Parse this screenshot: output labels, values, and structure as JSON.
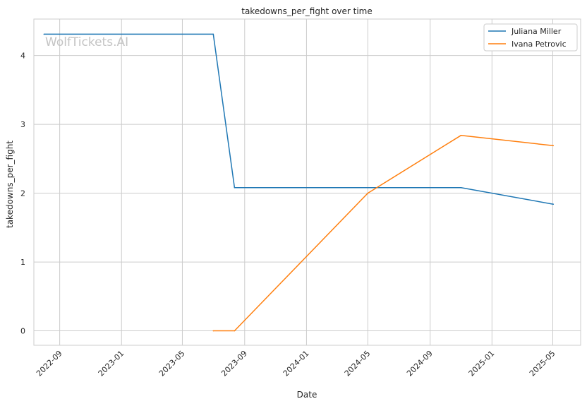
{
  "chart_data": {
    "type": "line",
    "title": "takedowns_per_fight over time",
    "xlabel": "Date",
    "ylabel": "takedowns_per_fight",
    "x_ticks": [
      "2022-09",
      "2023-01",
      "2023-05",
      "2023-09",
      "2024-01",
      "2024-05",
      "2024-09",
      "2025-01",
      "2025-05"
    ],
    "y_ticks": [
      0,
      1,
      2,
      3,
      4
    ],
    "xlim": [
      "2022-07-12",
      "2025-06-25"
    ],
    "ylim": [
      -0.21,
      4.53
    ],
    "grid": true,
    "legend_position": "top-right",
    "watermark": "WolfTickets.AI",
    "series": [
      {
        "name": "Juliana Miller",
        "color": "#1f77b4",
        "points": [
          {
            "x": "2022-08-01",
            "y": 4.31
          },
          {
            "x": "2023-07-01",
            "y": 4.31
          },
          {
            "x": "2023-08-12",
            "y": 2.08
          },
          {
            "x": "2024-11-01",
            "y": 2.08
          },
          {
            "x": "2025-05-02",
            "y": 1.84
          }
        ]
      },
      {
        "name": "Ivana Petrovic",
        "color": "#ff7f0e",
        "points": [
          {
            "x": "2023-07-01",
            "y": 0.0
          },
          {
            "x": "2023-08-12",
            "y": 0.0
          },
          {
            "x": "2024-05-01",
            "y": 2.0
          },
          {
            "x": "2024-11-01",
            "y": 2.84
          },
          {
            "x": "2025-05-02",
            "y": 2.69
          }
        ]
      }
    ]
  }
}
